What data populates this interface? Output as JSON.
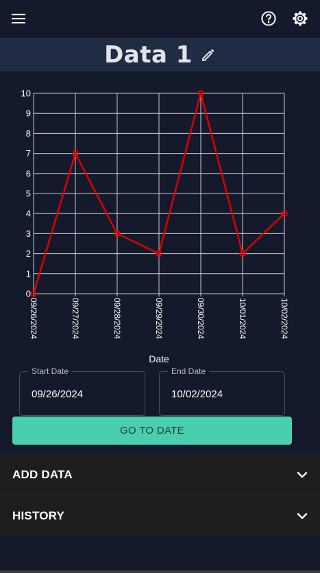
{
  "header": {
    "menu_icon": "hamburger-menu-icon",
    "help_icon": "help-circle-icon",
    "settings_icon": "gear-icon"
  },
  "title": {
    "text": "Data 1",
    "edit_icon": "pencil-icon"
  },
  "chart_data": {
    "type": "line",
    "categories": [
      "09/26/2024",
      "09/27/2024",
      "09/28/2024",
      "09/29/2024",
      "09/30/2024",
      "10/01/2024",
      "10/02/2024"
    ],
    "series": [
      {
        "values": [
          0,
          7,
          3,
          2,
          10,
          2,
          4
        ],
        "color": "#e00000"
      }
    ],
    "xlabel": "Date",
    "ylabel": "",
    "ylim": [
      0,
      10
    ],
    "yticks": [
      "0",
      "1",
      "2",
      "3",
      "4",
      "5",
      "6",
      "7",
      "8",
      "9",
      "10"
    ],
    "grid": true
  },
  "date_range": {
    "start_label": "Start Date",
    "start_value": "09/26/2024",
    "end_label": "End Date",
    "end_value": "10/02/2024"
  },
  "go_button": "GO TO DATE",
  "sections": {
    "add_data": "ADD DATA",
    "history": "HISTORY"
  },
  "colors": {
    "background": "#141a2c",
    "title_bar": "#212c44",
    "accent": "#49cfad",
    "line": "#e00000"
  }
}
